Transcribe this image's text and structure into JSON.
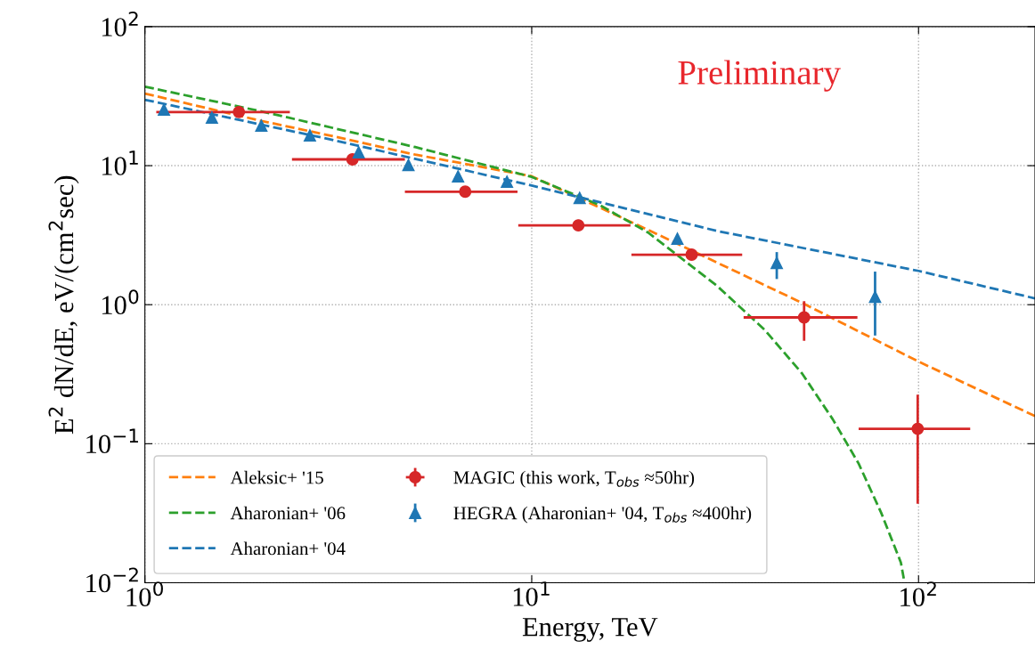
{
  "chart_data": {
    "type": "line",
    "xlabel": "Energy, TeV",
    "ylabel": "E$^{2}$ dN/dE, eV/(cm$^{2}$sec)",
    "log": "xy",
    "grid": true,
    "legend": "bottom left",
    "xlim": [
      1,
      200
    ],
    "ylim": [
      0.01,
      100
    ],
    "xticks": [
      {
        "value": 1,
        "label": "10$^{0}$"
      },
      {
        "value": 10,
        "label": "10$^{1}$"
      },
      {
        "value": 100,
        "label": "10$^{2}$"
      }
    ],
    "yticks": [
      {
        "value": 0.01,
        "label": "10$^{−2}$"
      },
      {
        "value": 0.1,
        "label": "10$^{−1}$"
      },
      {
        "value": 1,
        "label": "10$^{0}$"
      },
      {
        "value": 10,
        "label": "10$^{1}$"
      },
      {
        "value": 100,
        "label": "10$^{2}$"
      }
    ],
    "annotations": [
      "Preliminary"
    ],
    "series": [
      {
        "name": "Aleksic+ '15",
        "line_style": "dashed",
        "marker": "none",
        "color": "#ff7f0e",
        "x": [
          1,
          2,
          3,
          5,
          10,
          20,
          50,
          100,
          200
        ],
        "values": [
          33,
          21,
          16.5,
          12,
          8.4,
          3.45,
          1.03,
          0.39,
          0.158
        ]
      },
      {
        "name": "Aharonian+ '06",
        "line_style": "dashed",
        "marker": "none",
        "color": "#2ca02c",
        "x": [
          1,
          2,
          5,
          10,
          15,
          20,
          30,
          40,
          50,
          60,
          70,
          80,
          90,
          92
        ],
        "values": [
          37,
          24.6,
          13.6,
          8.3,
          5.2,
          3.3,
          1.38,
          0.66,
          0.32,
          0.15,
          0.072,
          0.032,
          0.014,
          0.01
        ]
      },
      {
        "name": "Aharonian+ '04",
        "line_style": "dashed",
        "marker": "none",
        "color": "#1f77b4",
        "x": [
          1,
          3,
          10,
          30,
          100,
          200
        ],
        "values": [
          29.8,
          15.5,
          7.2,
          3.4,
          1.75,
          1.11
        ]
      },
      {
        "name": "MAGIC (this work, T$_{obs}$ ≈50hr)",
        "type": "scatter",
        "marker": "circle",
        "color": "#d62728",
        "x": [
          1.75,
          3.44,
          6.73,
          13.2,
          25.9,
          50.6,
          99.5
        ],
        "values": [
          24.3,
          11.1,
          6.5,
          3.72,
          2.29,
          0.81,
          0.128
        ],
        "errors": [
          null,
          null,
          null,
          null,
          [
            2.1,
            2.5
          ],
          [
            0.55,
            1.06
          ],
          [
            0.037,
            0.225
          ]
        ],
        "xerrors": [
          [
            1.07,
            2.37
          ],
          [
            2.4,
            4.7
          ],
          [
            4.7,
            9.19
          ],
          [
            9.23,
            18.0
          ],
          [
            18.1,
            35.0
          ],
          [
            35.3,
            69.5
          ],
          [
            70.0,
            136
          ]
        ]
      },
      {
        "name": "HEGRA (Aharonian+ '04, T$_{obs}$ ≈400hr)",
        "type": "scatter",
        "marker": "triangle",
        "color": "#1f77b4",
        "x": [
          1.12,
          1.49,
          2.0,
          2.67,
          3.57,
          4.8,
          6.45,
          8.63,
          13.3,
          23.8,
          43.0,
          77.2
        ],
        "values": [
          25.3,
          22.2,
          19.4,
          16.5,
          12.5,
          10.1,
          8.38,
          7.67,
          5.87,
          2.98,
          2.0,
          1.14
        ],
        "errors": [
          null,
          null,
          null,
          null,
          null,
          null,
          null,
          null,
          null,
          null,
          [
            1.53,
            2.39
          ],
          [
            0.6,
            1.73
          ]
        ]
      }
    ]
  }
}
